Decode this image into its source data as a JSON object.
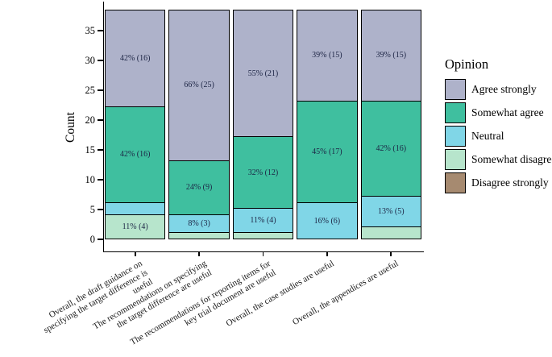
{
  "chart_data": {
    "type": "bar",
    "stacked": true,
    "title": "",
    "ylabel": "Count",
    "xlabel": "",
    "legend_title": "Opinion",
    "legend_position": "right",
    "grid": false,
    "ylim": [
      0,
      38
    ],
    "yticks": [
      0,
      5,
      10,
      15,
      20,
      25,
      30,
      35
    ],
    "bar_total": 38,
    "categories": [
      "Overall, the draft guidance on\nspecifying the target difference is useful",
      "The recommendations on specifying\nthe target difference are useful",
      "The recommendations for reporting items for\nkey trial document are useful",
      "Overall, the case studies are useful",
      "Overall, the appendices are useful"
    ],
    "series": [
      {
        "name": "Agree strongly",
        "color": "#aeb2ca",
        "values": [
          16,
          25,
          21,
          15,
          15
        ],
        "labels": [
          "42% (16)",
          "66% (25)",
          "55% (21)",
          "39% (15)",
          "39% (15)"
        ]
      },
      {
        "name": "Somewhat agree",
        "color": "#3fbf9f",
        "values": [
          16,
          9,
          12,
          17,
          16
        ],
        "labels": [
          "42% (16)",
          "24% (9)",
          "32% (12)",
          "45% (17)",
          "42% (16)"
        ]
      },
      {
        "name": "Neutral",
        "color": "#80d6e7",
        "values": [
          2,
          3,
          4,
          6,
          5
        ],
        "labels": [
          "",
          "8% (3)",
          "11% (4)",
          "16% (6)",
          "13% (5)"
        ]
      },
      {
        "name": "Somewhat disagree",
        "color": "#b7e5cc",
        "values": [
          4,
          1,
          1,
          0,
          2
        ],
        "labels": [
          "11% (4)",
          "",
          "",
          "",
          ""
        ]
      },
      {
        "name": "Disagree strongly",
        "color": "#a68a70",
        "values": [
          0,
          0,
          0,
          0,
          0
        ],
        "labels": [
          "",
          "",
          "",
          "",
          ""
        ]
      }
    ],
    "colors": {
      "axis_line": "#000000",
      "segment_border": "#000000",
      "segment_label_text": "#1c2444"
    }
  }
}
